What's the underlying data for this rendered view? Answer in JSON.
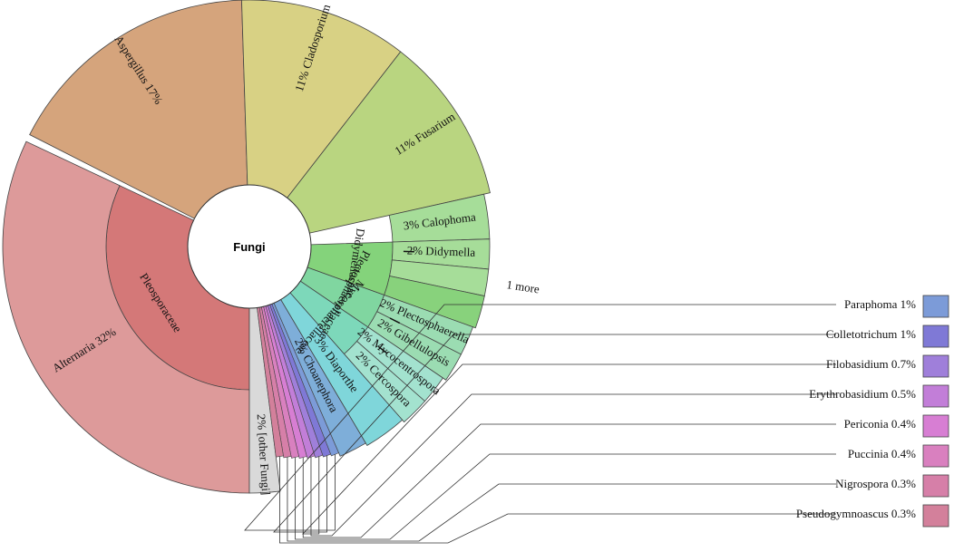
{
  "chart_data": {
    "type": "sunburst",
    "center_label": "Fungi",
    "families": [
      {
        "name": "Pleosporaceae",
        "start": 0.5,
        "end": 0.82,
        "color": "#d47878"
      },
      {
        "name": "Didymellaceae",
        "start": 0.245,
        "end": 0.305,
        "color": "#84d37b"
      },
      {
        "name": "Plectosphaerellaceae",
        "start": 0.305,
        "end": 0.345,
        "color": "#80d6a0"
      },
      {
        "name": "Mycosphaerellaceae",
        "start": 0.345,
        "end": 0.385,
        "color": "#7dd8ba"
      }
    ],
    "genera": [
      {
        "name": "Alternaria",
        "pct": "32%",
        "start": 0.5,
        "end": 0.82,
        "color": "#dd9a9a"
      },
      {
        "name": "Aspergillus",
        "pct": "17%",
        "start": 0.825,
        "end": 0.995,
        "color": "#d5a47c"
      },
      {
        "name": "Cladosporium",
        "pct": "11%",
        "start": 0.995,
        "end": 1.105,
        "color": "#d8d184"
      },
      {
        "name": "Fusarium",
        "pct": "11%",
        "start": 0.105,
        "end": 0.215,
        "color": "#b9d580"
      },
      {
        "name": "Calophoma",
        "pct": "3%",
        "start": 0.215,
        "end": 0.245,
        "color": "#a6dd99"
      },
      {
        "name": "Didymella",
        "pct": "2%",
        "start": 0.245,
        "end": 0.265,
        "color": "#a6dd99"
      },
      {
        "name": "1 more",
        "pct": "",
        "start": 0.265,
        "end": 0.283,
        "color": "#a6dd99"
      },
      {
        "name": "",
        "pct": "",
        "start": 0.283,
        "end": 0.305,
        "color": "#88d27c"
      },
      {
        "name": "Plectosphaerella",
        "pct": "2%",
        "start": 0.305,
        "end": 0.325,
        "color": "#9bdcb2"
      },
      {
        "name": "Gibellulopsis",
        "pct": "2%",
        "start": 0.325,
        "end": 0.345,
        "color": "#9bdcb2"
      },
      {
        "name": "Mycocentrospora",
        "pct": "2%",
        "start": 0.345,
        "end": 0.365,
        "color": "#a3e2cf"
      },
      {
        "name": "Cercospora",
        "pct": "2%",
        "start": 0.365,
        "end": 0.385,
        "color": "#a3e2cf"
      },
      {
        "name": "Diaporthe",
        "pct": "3%",
        "start": 0.385,
        "end": 0.415,
        "color": "#7fd6da"
      },
      {
        "name": "Choanephora",
        "pct": "2%",
        "start": 0.415,
        "end": 0.435,
        "color": "#7eaed9"
      },
      {
        "name": "[other Fungi]",
        "pct": "2%",
        "start": 0.48,
        "end": 0.5,
        "color": "#d9d9d9"
      }
    ],
    "small_genera": [
      {
        "name": "Paraphoma",
        "pct": "1%",
        "color": "#7c9bd8"
      },
      {
        "name": "Colletotrichum",
        "pct": "1%",
        "color": "#7f79d6"
      },
      {
        "name": "Filobasidium",
        "pct": "0.7%",
        "color": "#9f7fda"
      },
      {
        "name": "Erythrobasidium",
        "pct": "0.5%",
        "color": "#c27ed8"
      },
      {
        "name": "Periconia",
        "pct": "0.4%",
        "color": "#d77ed3"
      },
      {
        "name": "Puccinia",
        "pct": "0.4%",
        "color": "#d980bf"
      },
      {
        "name": "Nigrospora",
        "pct": "0.3%",
        "color": "#d67fa8"
      },
      {
        "name": "Pseudogymnoascus",
        "pct": "0.3%",
        "color": "#d3809b"
      }
    ]
  }
}
